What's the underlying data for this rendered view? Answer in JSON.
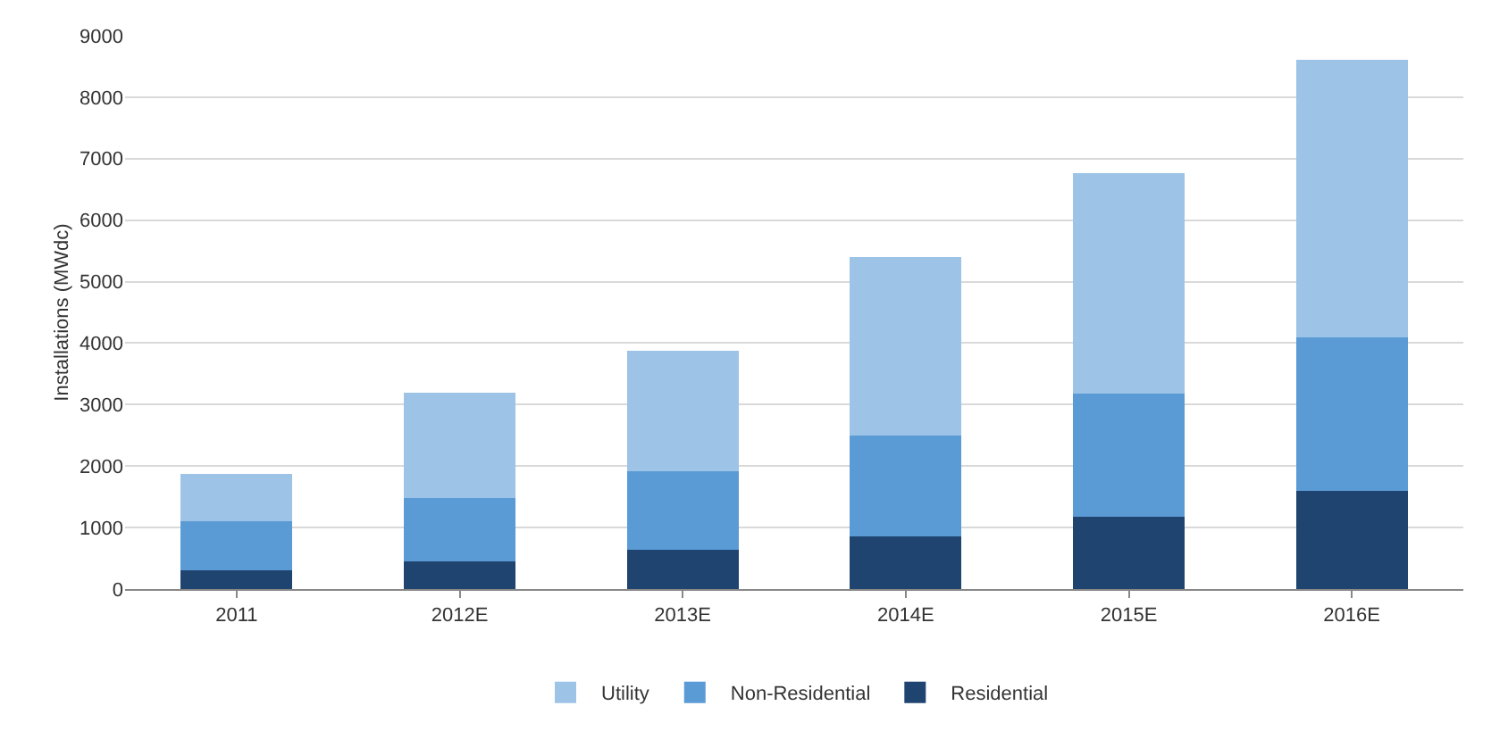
{
  "chart_data": {
    "type": "bar",
    "stacked": true,
    "ylabel": "Installations (MWdc)",
    "categories": [
      "2011",
      "2012E",
      "2013E",
      "2014E",
      "2015E",
      "2016E"
    ],
    "series": [
      {
        "name": "Residential",
        "color": "#1f4470",
        "values": [
          300,
          450,
          640,
          860,
          1170,
          1590
        ]
      },
      {
        "name": "Non-Residential",
        "color": "#5b9bd5",
        "values": [
          810,
          1030,
          1280,
          1640,
          2010,
          2500
        ]
      },
      {
        "name": "Utility",
        "color": "#9dc3e6",
        "values": [
          760,
          1720,
          1950,
          2900,
          3590,
          4520
        ]
      }
    ],
    "ylim": [
      0,
      9000
    ],
    "yticks": [
      0,
      1000,
      2000,
      3000,
      4000,
      5000,
      6000,
      7000,
      8000,
      9000
    ],
    "grid": "y",
    "legend": "bottom"
  }
}
